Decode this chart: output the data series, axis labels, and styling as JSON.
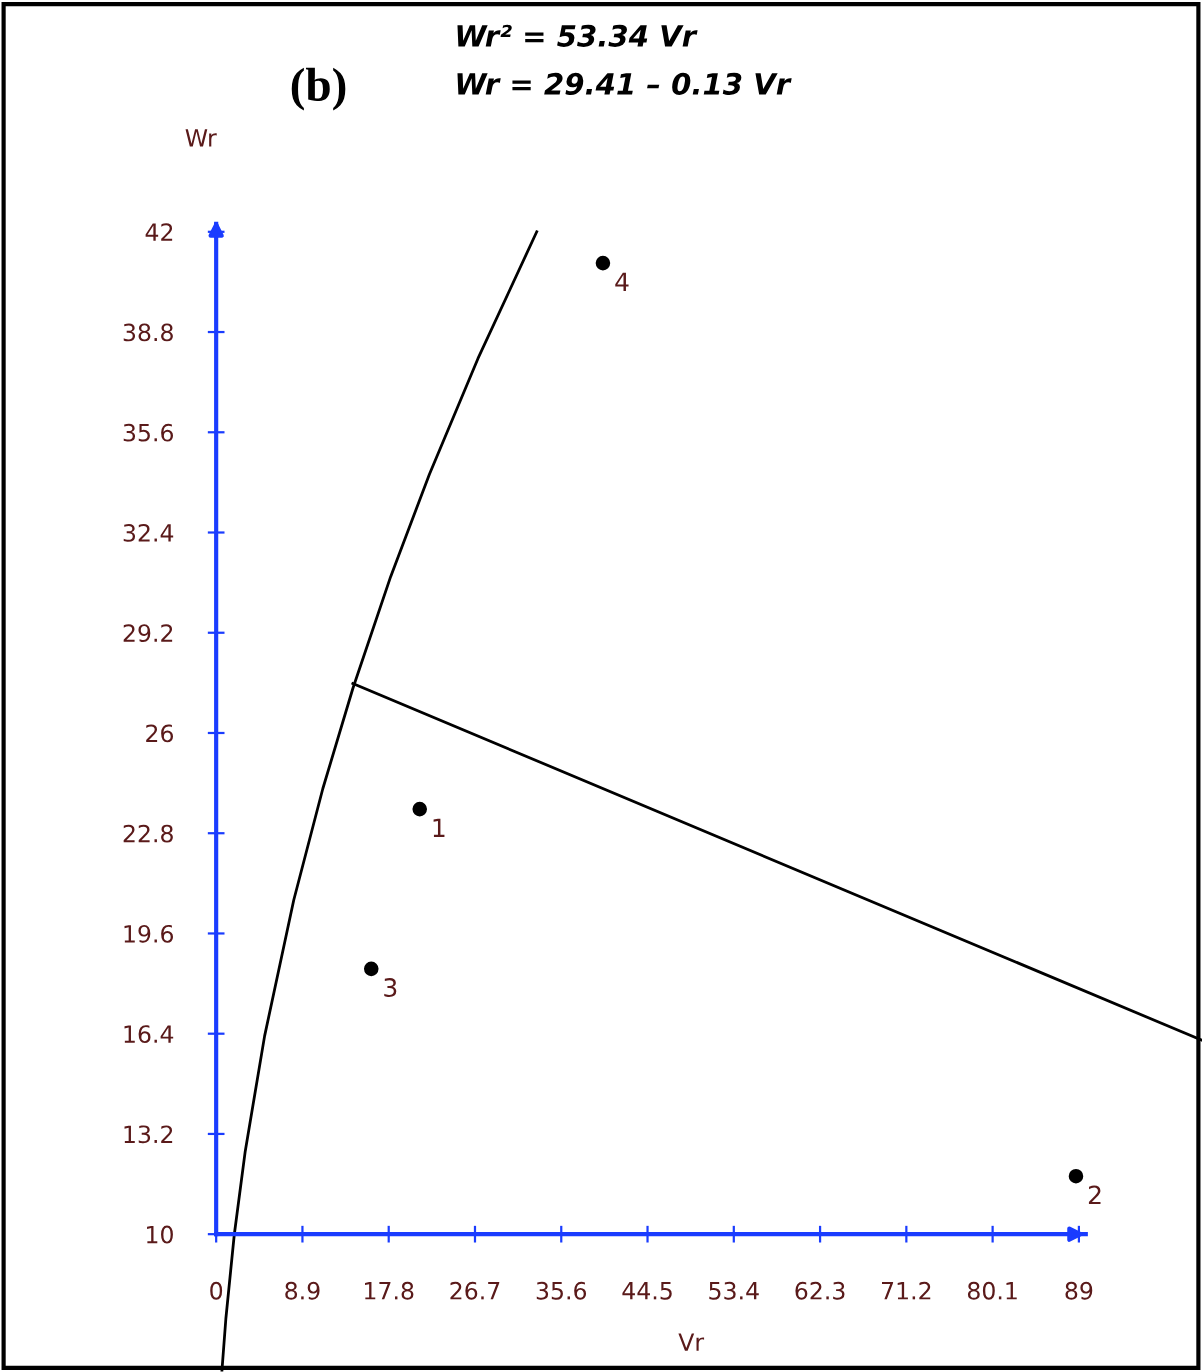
{
  "chart_data": {
    "type": "scatter",
    "title": "(b)",
    "xlabel": "Vr",
    "ylabel": "Wr",
    "annotations": [
      "Wr² = 53.34 Vr",
      "Wr = 29.41 – 0.13 Vr"
    ],
    "xlim": [
      -22.3,
      101.7
    ],
    "ylim": [
      5.6,
      49.4
    ],
    "xticks": [
      0,
      8.9,
      17.8,
      26.7,
      35.6,
      44.5,
      53.4,
      62.3,
      71.2,
      80.1,
      89
    ],
    "yticks": [
      10,
      13.2,
      16.4,
      19.6,
      22.8,
      26,
      29.2,
      32.4,
      35.6,
      38.8,
      42
    ],
    "grid": false,
    "marker": "circle",
    "series": [
      {
        "name": "1",
        "color": "#000000",
        "x": [
          21.0
        ],
        "values": [
          23.57
        ]
      },
      {
        "name": "2",
        "color": "#000000",
        "x": [
          88.7
        ],
        "values": [
          11.85
        ]
      },
      {
        "name": "3",
        "color": "#000000",
        "x": [
          16.0
        ],
        "values": [
          18.47
        ]
      },
      {
        "name": "4",
        "color": "#000000",
        "x": [
          39.9
        ],
        "values": [
          41.0
        ]
      },
      {
        "type": "line",
        "color": "#000000",
        "marker": "none",
        "line_style": "solid",
        "x": [
          0.6,
          1,
          1.87,
          3,
          5,
          8,
          11,
          14.1,
          18,
          22,
          27,
          33.07
        ],
        "values": [
          5.66,
          7.3,
          9.99,
          12.65,
          16.33,
          20.66,
          24.22,
          27.42,
          30.99,
          34.26,
          37.95,
          42.0
        ]
      },
      {
        "type": "line",
        "color": "#000000",
        "marker": "none",
        "line_style": "solid",
        "x": [
          14.1,
          101.7
        ],
        "values": [
          27.58,
          16.19
        ]
      }
    ]
  }
}
